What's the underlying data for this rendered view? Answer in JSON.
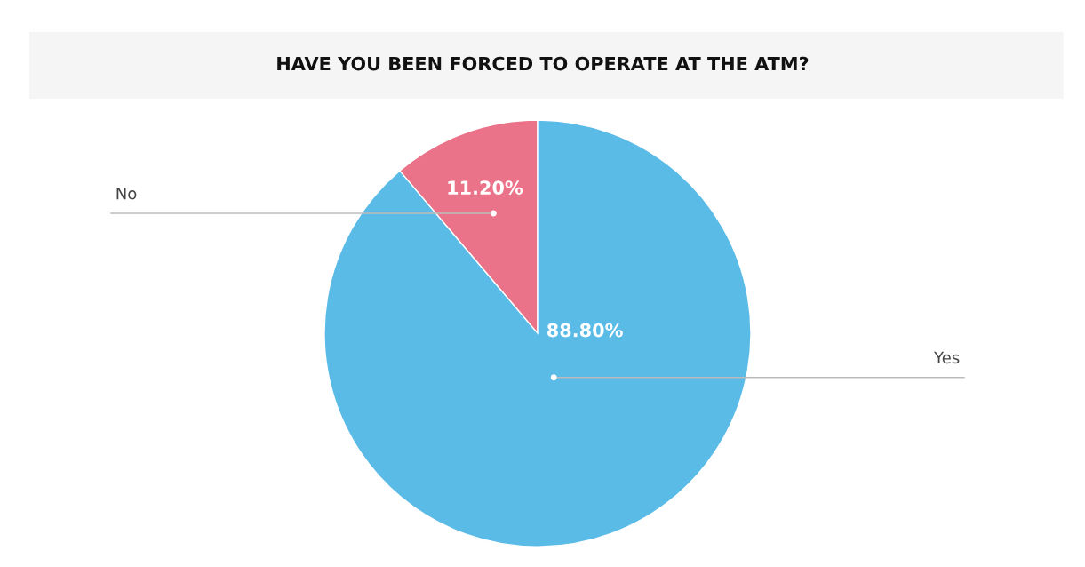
{
  "chart_data": {
    "type": "pie",
    "title": "HAVE YOU BEEN FORCED TO OPERATE AT THE ATM?",
    "categories": [
      "No",
      "Yes"
    ],
    "values": [
      11.2,
      88.8
    ],
    "colors": [
      "#eb7389",
      "#5bbbe7"
    ],
    "value_labels": [
      "11.20%",
      "88.80%"
    ],
    "legend": false
  }
}
